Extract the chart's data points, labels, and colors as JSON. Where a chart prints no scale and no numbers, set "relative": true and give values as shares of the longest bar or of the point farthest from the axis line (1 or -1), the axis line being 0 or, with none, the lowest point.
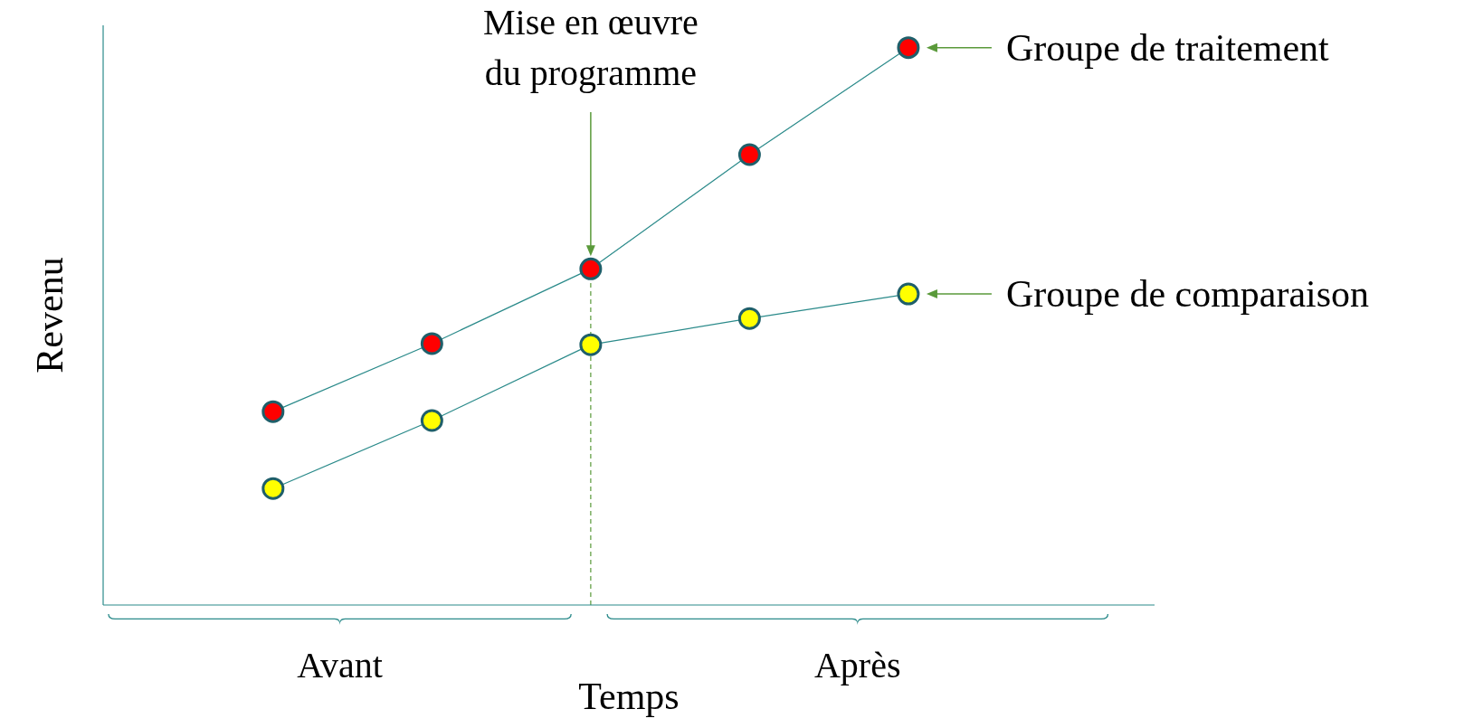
{
  "chart_data": {
    "type": "line",
    "relative": true,
    "xlabel": "Temps",
    "ylabel": "Revenu",
    "categories": [
      null,
      null,
      null,
      null,
      null
    ],
    "series": [
      {
        "name": "Groupe de traitement",
        "color": "#2a8a8a",
        "colors": [
          "#ff0000",
          "#ff0000",
          "#ff0000",
          "#ff0000",
          "#ff0000"
        ],
        "values": [
          0.347,
          0.469,
          0.603,
          0.808,
          1
        ]
      },
      {
        "name": "Groupe de comparaison",
        "color": "#2a8a8a",
        "colors": [
          "#ffff00",
          "#ffff00",
          "#ffff00",
          "#ffff00",
          "#ffff00"
        ],
        "values": [
          0.209,
          0.331,
          0.467,
          0.514,
          0.558
        ]
      }
    ],
    "annotations": [
      "Mise en œuvre du programme",
      "Avant",
      "Après"
    ],
    "marker": "circle",
    "legend": "right",
    "grid": false
  }
}
